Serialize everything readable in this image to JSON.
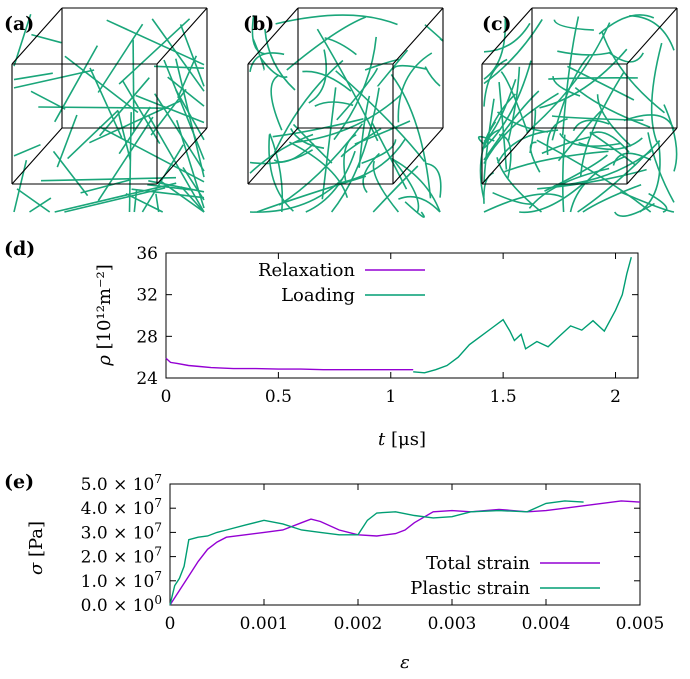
{
  "colors": {
    "relaxation": "#9400d3",
    "loading": "#009e73",
    "frame": "#000000",
    "dislocation": "#1aa67a"
  },
  "panels": {
    "a": "(a)",
    "b": "(b)",
    "c": "(c)",
    "d": "(d)",
    "e": "(e)"
  },
  "chart_data": [
    {
      "type": "line",
      "panel": "(d)",
      "xlabel_symbol": "t",
      "xlabel_unit": "[μs]",
      "ylabel_symbol": "ρ",
      "ylabel_unit": "[10¹²m⁻²]",
      "xlim": [
        0,
        2.1
      ],
      "ylim": [
        24,
        36
      ],
      "xticks": [
        "0",
        "0.5",
        "1",
        "1.5",
        "2"
      ],
      "xtick_values": [
        0,
        0.5,
        1,
        1.5,
        2
      ],
      "yticks": [
        "24",
        "28",
        "32",
        "36"
      ],
      "ytick_values": [
        24,
        28,
        32,
        36
      ],
      "legend_position": "top-left",
      "series": [
        {
          "name": "Relaxation",
          "x": [
            0,
            0.02,
            0.05,
            0.1,
            0.15,
            0.2,
            0.3,
            0.4,
            0.5,
            0.6,
            0.7,
            0.8,
            0.9,
            1.0,
            1.1
          ],
          "y": [
            25.9,
            25.5,
            25.4,
            25.2,
            25.1,
            25.0,
            24.9,
            24.9,
            24.85,
            24.85,
            24.8,
            24.8,
            24.8,
            24.8,
            24.8
          ]
        },
        {
          "name": "Loading",
          "x": [
            1.1,
            1.15,
            1.2,
            1.25,
            1.3,
            1.35,
            1.4,
            1.45,
            1.5,
            1.53,
            1.55,
            1.58,
            1.6,
            1.65,
            1.7,
            1.75,
            1.8,
            1.85,
            1.9,
            1.95,
            2.0,
            2.03,
            2.05,
            2.07
          ],
          "y": [
            24.6,
            24.5,
            24.8,
            25.2,
            26.0,
            27.2,
            28.0,
            28.8,
            29.6,
            28.5,
            27.6,
            28.2,
            26.8,
            27.5,
            27.0,
            28.0,
            29.0,
            28.6,
            29.5,
            28.5,
            30.5,
            32.0,
            34.0,
            35.6
          ]
        }
      ]
    },
    {
      "type": "line",
      "panel": "(e)",
      "xlabel_symbol": "ε",
      "ylabel_symbol": "σ",
      "ylabel_unit": "[Pa]",
      "xlim": [
        0,
        0.005
      ],
      "ylim": [
        0,
        50000000
      ],
      "xticks": [
        "0",
        "0.001",
        "0.002",
        "0.003",
        "0.004",
        "0.005"
      ],
      "xtick_values": [
        0,
        0.001,
        0.002,
        0.003,
        0.004,
        0.005
      ],
      "yticks": [
        {
          "mant": "0.0 × 10",
          "exp": "0"
        },
        {
          "mant": "1.0 × 10",
          "exp": "7"
        },
        {
          "mant": "2.0 × 10",
          "exp": "7"
        },
        {
          "mant": "3.0 × 10",
          "exp": "7"
        },
        {
          "mant": "4.0 × 10",
          "exp": "7"
        },
        {
          "mant": "5.0 × 10",
          "exp": "7"
        }
      ],
      "ytick_values": [
        0,
        10000000,
        20000000,
        30000000,
        40000000,
        50000000
      ],
      "legend_position": "bottom-right",
      "series": [
        {
          "name": "Total strain",
          "x": [
            0,
            0.0001,
            0.0002,
            0.0003,
            0.0004,
            0.0005,
            0.0006,
            0.0008,
            0.001,
            0.0012,
            0.0014,
            0.0015,
            0.0016,
            0.0018,
            0.002,
            0.0022,
            0.0024,
            0.0025,
            0.0026,
            0.0028,
            0.003,
            0.0032,
            0.0035,
            0.0038,
            0.004,
            0.0042,
            0.0045,
            0.0048,
            0.005
          ],
          "y": [
            0,
            6000000,
            12000000,
            18000000,
            23000000,
            26000000,
            28000000,
            29000000,
            30000000,
            31000000,
            34000000,
            35500000,
            34500000,
            31000000,
            29000000,
            28500000,
            29500000,
            31000000,
            34000000,
            38500000,
            39000000,
            38500000,
            39500000,
            38500000,
            39000000,
            40000000,
            41500000,
            43000000,
            42500000
          ]
        },
        {
          "name": "Plastic strain",
          "x": [
            0,
            5e-05,
            0.0001,
            0.00015,
            0.0002,
            0.0003,
            0.0004,
            0.0005,
            0.0006,
            0.0008,
            0.001,
            0.0012,
            0.0014,
            0.0016,
            0.0018,
            0.002,
            0.0021,
            0.0022,
            0.0024,
            0.0026,
            0.0028,
            0.003,
            0.0032,
            0.0035,
            0.0038,
            0.004,
            0.0042,
            0.0044
          ],
          "y": [
            0,
            8000000,
            11000000,
            16000000,
            27000000,
            28000000,
            28500000,
            30000000,
            31000000,
            33000000,
            35000000,
            33500000,
            31000000,
            30000000,
            29000000,
            29000000,
            35000000,
            38000000,
            38500000,
            37000000,
            36000000,
            36500000,
            38500000,
            39000000,
            38500000,
            42000000,
            43000000,
            42500000
          ]
        }
      ]
    }
  ]
}
